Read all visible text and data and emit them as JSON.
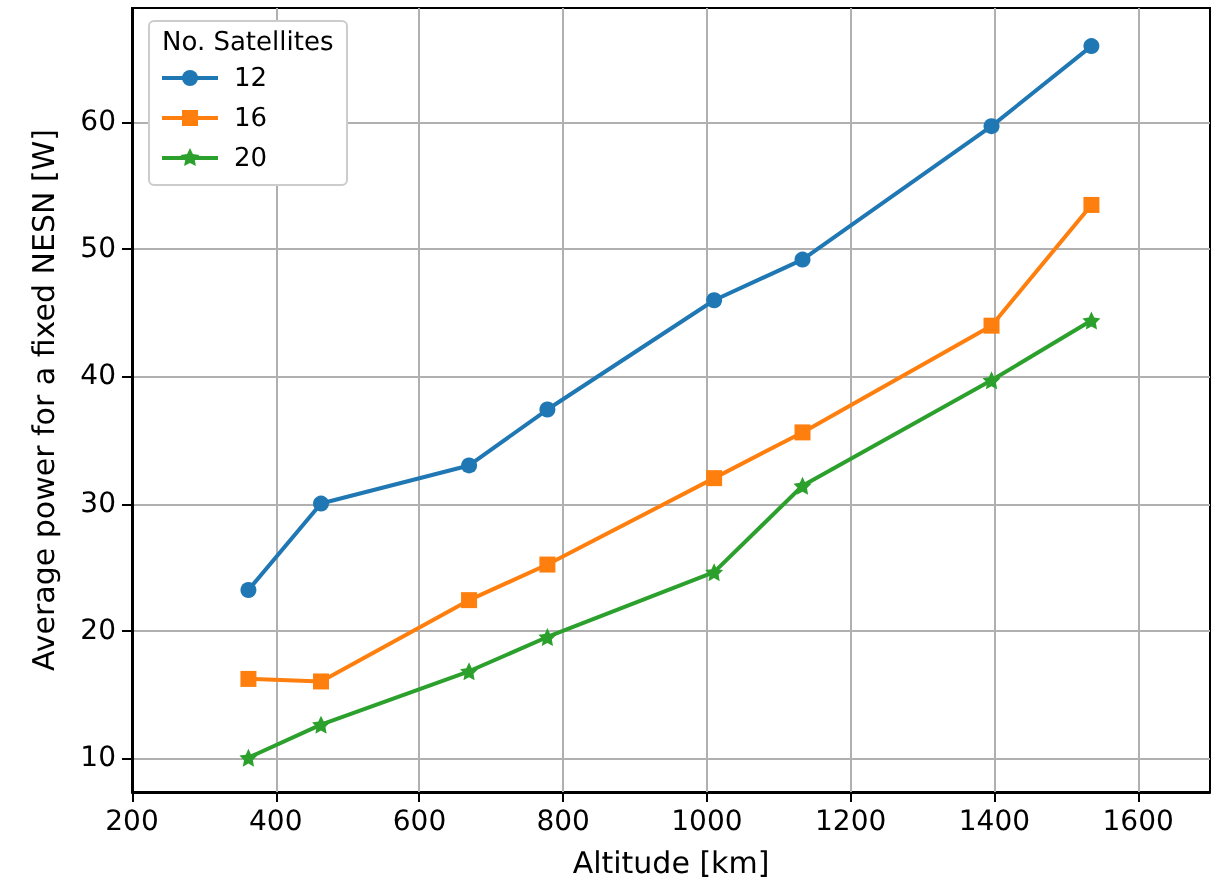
{
  "chart_data": {
    "type": "line",
    "xlabel": "Altitude [km]",
    "ylabel": "Average power for a fixed NESN [W]",
    "legend_title": "No. Satellites",
    "x": [
      362,
      463,
      669,
      778,
      1010,
      1133,
      1396,
      1535
    ],
    "series": [
      {
        "name": "12",
        "color": "#1f77b4",
        "marker": "circle",
        "values": [
          23.2,
          30.0,
          33.0,
          37.4,
          46.0,
          49.2,
          59.7,
          66.0
        ]
      },
      {
        "name": "16",
        "color": "#ff7f0e",
        "marker": "square",
        "values": [
          16.2,
          16.0,
          22.4,
          25.2,
          32.0,
          35.6,
          44.0,
          53.5
        ]
      },
      {
        "name": "20",
        "color": "#2ca02c",
        "marker": "star",
        "values": [
          10.0,
          12.6,
          16.8,
          19.5,
          24.6,
          31.4,
          39.7,
          44.4
        ]
      }
    ],
    "xlim": [
      200,
      1700
    ],
    "xticks": [
      200,
      400,
      600,
      800,
      1000,
      1200,
      1400,
      1600
    ],
    "ylim": [
      7.3,
      69
    ],
    "yticks": [
      10,
      20,
      30,
      40,
      50,
      60
    ],
    "grid": true,
    "legend": "top left",
    "line_style": "solid"
  }
}
